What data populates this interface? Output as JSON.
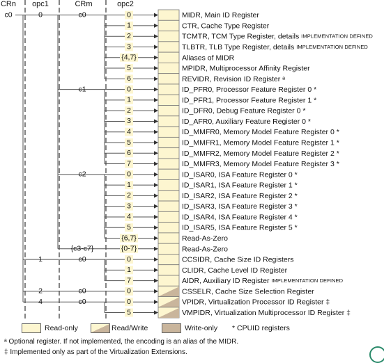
{
  "headers": {
    "crn": "CRn",
    "opc1": "opc1",
    "crm": "CRm",
    "opc2": "opc2"
  },
  "colors": {
    "readonly": "#fdf6d0",
    "readwrite_fill": "#c9b59c",
    "writeonly": "#c9b59c",
    "line": "#555555",
    "label_bg": "#fdf6d0"
  },
  "crn_label": "c0",
  "rows": [
    {
      "opc1": "0",
      "crm": "c0",
      "opc2": "0",
      "desc": "MIDR, Main ID Register",
      "small": "",
      "kind": "ro"
    },
    {
      "opc1": "",
      "crm": "",
      "opc2": "1",
      "desc": "CTR, Cache Type Register",
      "small": "",
      "kind": "ro"
    },
    {
      "opc1": "",
      "crm": "",
      "opc2": "2",
      "desc": "TCMTR, TCM Type Register, details ",
      "small": "IMPLEMENTATION DEFINED",
      "kind": "ro"
    },
    {
      "opc1": "",
      "crm": "",
      "opc2": "3",
      "desc": "TLBTR, TLB Type Register, details ",
      "small": "IMPLEMENTATION DEFINED",
      "kind": "ro"
    },
    {
      "opc1": "",
      "crm": "",
      "opc2": "{4,7}",
      "desc": "Aliases of MIDR",
      "small": "",
      "kind": "ro"
    },
    {
      "opc1": "",
      "crm": "",
      "opc2": "5",
      "desc": "MPIDR, Multiprocessor Affinity Register",
      "small": "",
      "kind": "ro"
    },
    {
      "opc1": "",
      "crm": "",
      "opc2": "6",
      "desc": "REVIDR, Revision ID Register ᵃ",
      "small": "",
      "kind": "ro"
    },
    {
      "opc1": "",
      "crm": "c1",
      "opc2": "0",
      "desc": "ID_PFR0, Processor Feature Register 0 *",
      "small": "",
      "kind": "ro"
    },
    {
      "opc1": "",
      "crm": "",
      "opc2": "1",
      "desc": "ID_PFR1, Processor Feature Register 1 *",
      "small": "",
      "kind": "ro"
    },
    {
      "opc1": "",
      "crm": "",
      "opc2": "2",
      "desc": "ID_DFR0, Debug Feature Register 0 *",
      "small": "",
      "kind": "ro"
    },
    {
      "opc1": "",
      "crm": "",
      "opc2": "3",
      "desc": "ID_AFR0, Auxiliary Feature Register 0 *",
      "small": "",
      "kind": "ro"
    },
    {
      "opc1": "",
      "crm": "",
      "opc2": "4",
      "desc": "ID_MMFR0, Memory Model Feature Register 0 *",
      "small": "",
      "kind": "ro"
    },
    {
      "opc1": "",
      "crm": "",
      "opc2": "5",
      "desc": "ID_MMFR1, Memory Model Feature Register 1 *",
      "small": "",
      "kind": "ro"
    },
    {
      "opc1": "",
      "crm": "",
      "opc2": "6",
      "desc": "ID_MMFR2, Memory Model Feature Register 2 *",
      "small": "",
      "kind": "ro"
    },
    {
      "opc1": "",
      "crm": "",
      "opc2": "7",
      "desc": "ID_MMFR3, Memory Model Feature Register 3 *",
      "small": "",
      "kind": "ro"
    },
    {
      "opc1": "",
      "crm": "c2",
      "opc2": "0",
      "desc": "ID_ISAR0, ISA Feature Register 0 *",
      "small": "",
      "kind": "ro"
    },
    {
      "opc1": "",
      "crm": "",
      "opc2": "1",
      "desc": "ID_ISAR1, ISA Feature Register 1 *",
      "small": "",
      "kind": "ro"
    },
    {
      "opc1": "",
      "crm": "",
      "opc2": "2",
      "desc": "ID_ISAR2, ISA Feature Register 2 *",
      "small": "",
      "kind": "ro"
    },
    {
      "opc1": "",
      "crm": "",
      "opc2": "3",
      "desc": "ID_ISAR3, ISA Feature Register 3 *",
      "small": "",
      "kind": "ro"
    },
    {
      "opc1": "",
      "crm": "",
      "opc2": "4",
      "desc": "ID_ISAR4, ISA Feature Register 4 *",
      "small": "",
      "kind": "ro"
    },
    {
      "opc1": "",
      "crm": "",
      "opc2": "5",
      "desc": "ID_ISAR5, ISA Feature Register 5 *",
      "small": "",
      "kind": "ro"
    },
    {
      "opc1": "",
      "crm": "",
      "opc2": "{6,7}",
      "desc": "Read-As-Zero",
      "small": "",
      "kind": "ro"
    },
    {
      "opc1": "",
      "crm": "{c3-c7}",
      "opc2": "{0-7}",
      "desc": "Read-As-Zero",
      "small": "",
      "kind": "ro"
    },
    {
      "opc1": "1",
      "crm": "c0",
      "opc2": "0",
      "desc": "CCSIDR, Cache Size ID Registers",
      "small": "",
      "kind": "ro"
    },
    {
      "opc1": "",
      "crm": "",
      "opc2": "1",
      "desc": "CLIDR, Cache Level ID Register",
      "small": "",
      "kind": "ro"
    },
    {
      "opc1": "",
      "crm": "",
      "opc2": "7",
      "desc": "AIDR, Auxiliary ID Register ",
      "small": "IMPLEMENTATION DEFINED",
      "kind": "ro"
    },
    {
      "opc1": "2",
      "crm": "c0",
      "opc2": "0",
      "desc": "CSSELR, Cache Size Selection Register",
      "small": "",
      "kind": "rw"
    },
    {
      "opc1": "4",
      "crm": "c0",
      "opc2": "0",
      "desc": "VPIDR, Virtualization Processor ID Register ‡",
      "small": "",
      "kind": "rw"
    },
    {
      "opc1": "",
      "crm": "",
      "opc2": "5",
      "desc": "VMPIDR, Virtualization Multiprocessor ID Register ‡",
      "small": "",
      "kind": "rw"
    }
  ],
  "legend": {
    "readonly": "Read-only",
    "readwrite": "Read/Write",
    "writeonly": "Write-only",
    "cpuid": "* CPUID registers"
  },
  "footnotes": {
    "a": "ᵃ Optional register. If not implemented, the encoding is an alias of the MIDR.",
    "b": "‡ Implemented only as part of the Virtualization Extensions."
  }
}
